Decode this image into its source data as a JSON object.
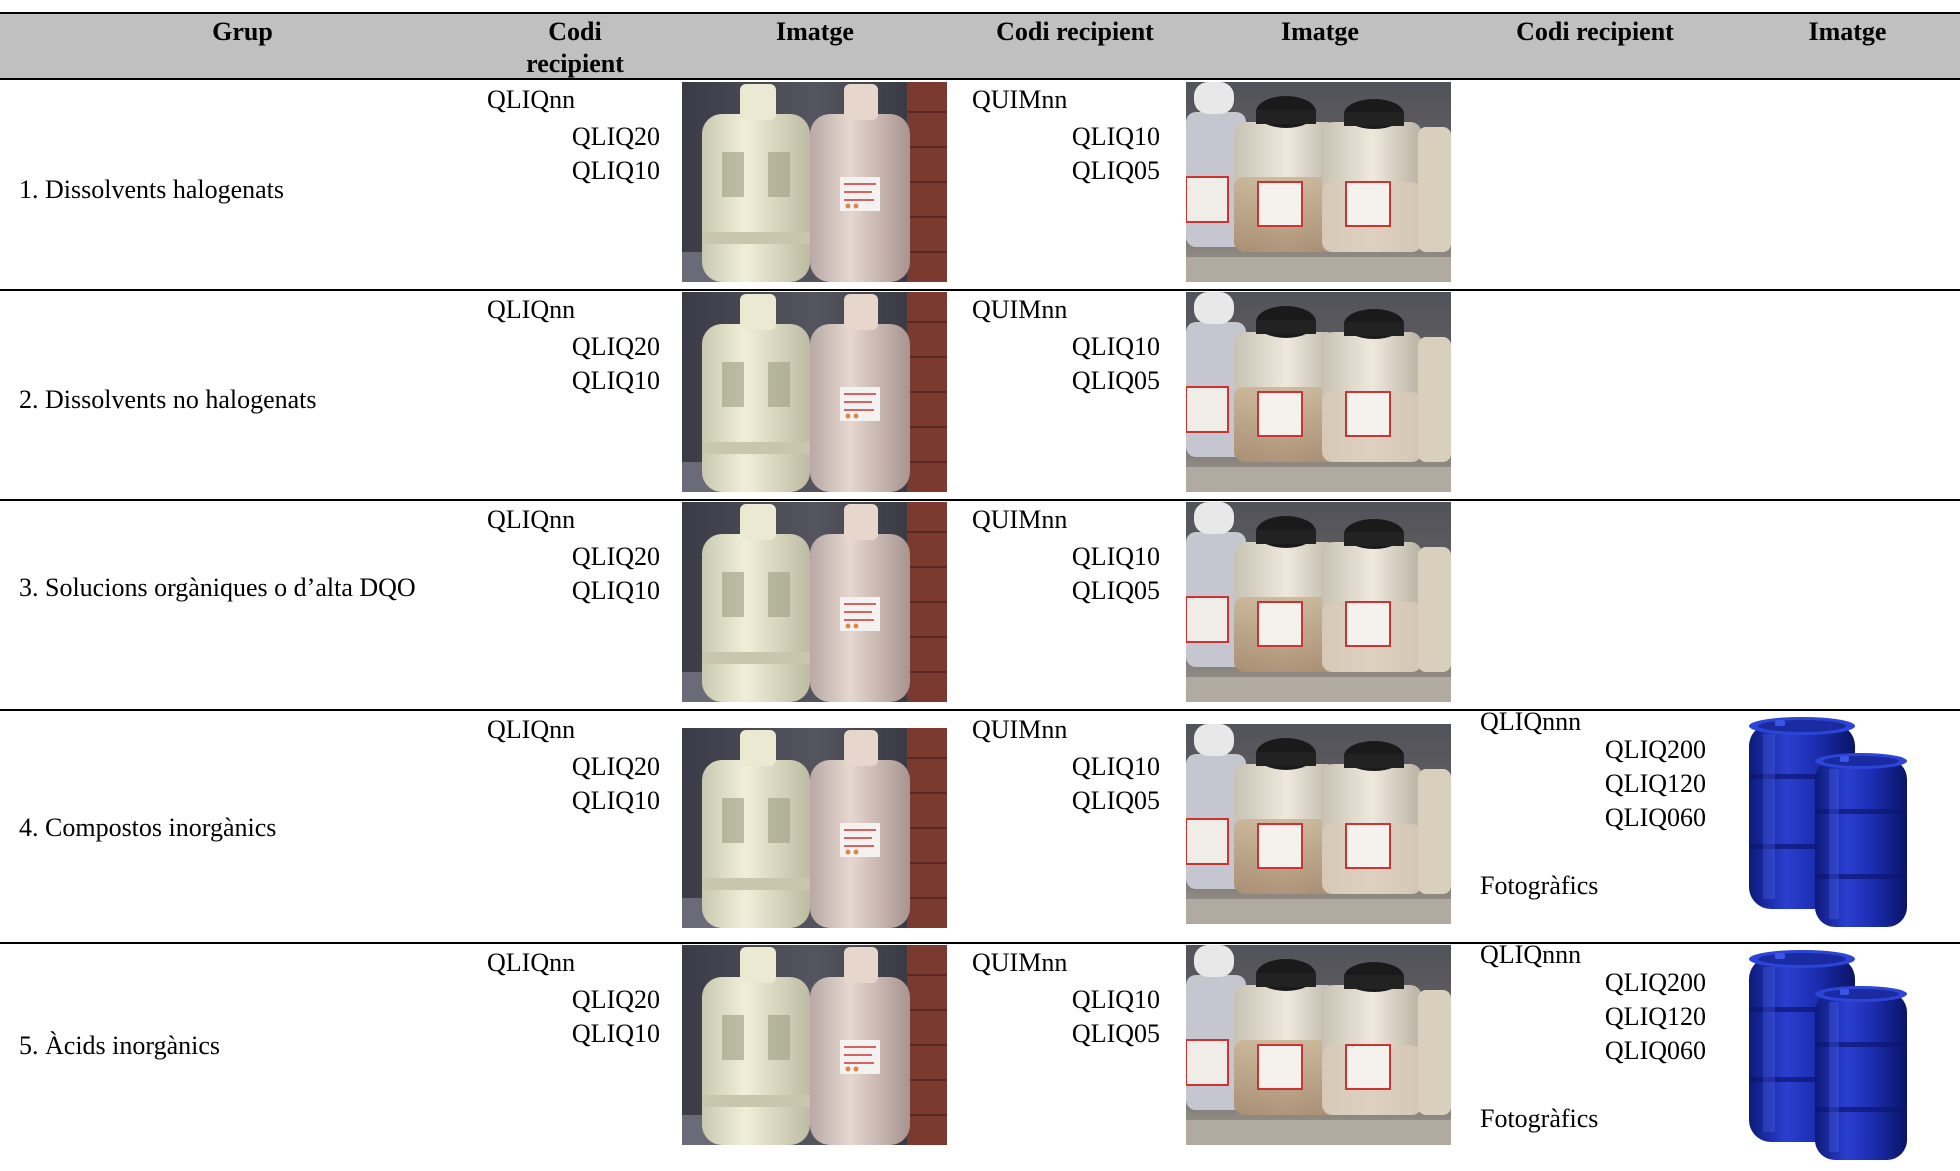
{
  "header": {
    "grup": "Grup",
    "codi_recipient_1": "Codi recipient",
    "imatge_1": "Imatge",
    "codi_recipient_2": "Codi recipient",
    "imatge_2": "Imatge",
    "codi_recipient_3": "Codi recipient",
    "imatge_3": "Imatge"
  },
  "rows": [
    {
      "grup": "1. Dissolvents halogenats",
      "c1": {
        "label": "QLIQnn",
        "subs": [
          "QLIQ20",
          "QLIQ10"
        ]
      },
      "c2": {
        "label": "QUIMnn",
        "subs": [
          "QLIQ10",
          "QLIQ05"
        ]
      },
      "c3": null
    },
    {
      "grup": "2. Dissolvents no halogenats",
      "c1": {
        "label": "QLIQnn",
        "subs": [
          "QLIQ20",
          "QLIQ10"
        ]
      },
      "c2": {
        "label": "QUIMnn",
        "subs": [
          "QLIQ10",
          "QLIQ05"
        ]
      },
      "c3": null
    },
    {
      "grup": "3. Solucions orgàniques o d’alta DQO",
      "c1": {
        "label": "QLIQnn",
        "subs": [
          "QLIQ20",
          "QLIQ10"
        ]
      },
      "c2": {
        "label": "QUIMnn",
        "subs": [
          "QLIQ10",
          "QLIQ05"
        ]
      },
      "c3": null
    },
    {
      "grup": "4. Compostos inorgànics",
      "c1": {
        "label": "QLIQnn",
        "subs": [
          "QLIQ20",
          "QLIQ10"
        ]
      },
      "c2": {
        "label": "QUIMnn",
        "subs": [
          "QLIQ10",
          "QLIQ05"
        ]
      },
      "c3": {
        "label": "QLIQnnn",
        "subs": [
          "QLIQ200",
          "QLIQ120",
          "QLIQ060"
        ],
        "note": "Fotogràfics"
      }
    },
    {
      "grup": "5. Àcids inorgànics",
      "c1": {
        "label": "QLIQnn",
        "subs": [
          "QLIQ20",
          "QLIQ10"
        ]
      },
      "c2": {
        "label": "QUIMnn",
        "subs": [
          "QLIQ10",
          "QLIQ05"
        ]
      },
      "c3": {
        "label": "QLIQnnn",
        "subs": [
          "QLIQ200",
          "QLIQ120",
          "QLIQ060"
        ],
        "note": "Fotogràfics"
      }
    }
  ],
  "images": {
    "bottles": "photo-white-plastic-bottles",
    "jerrycans": "photo-white-plastic-jerrycans",
    "drums": "photo-blue-plastic-drums"
  },
  "colors": {
    "header_bg": "#c0c0c0",
    "drum_blue": "#1f2fb0"
  }
}
